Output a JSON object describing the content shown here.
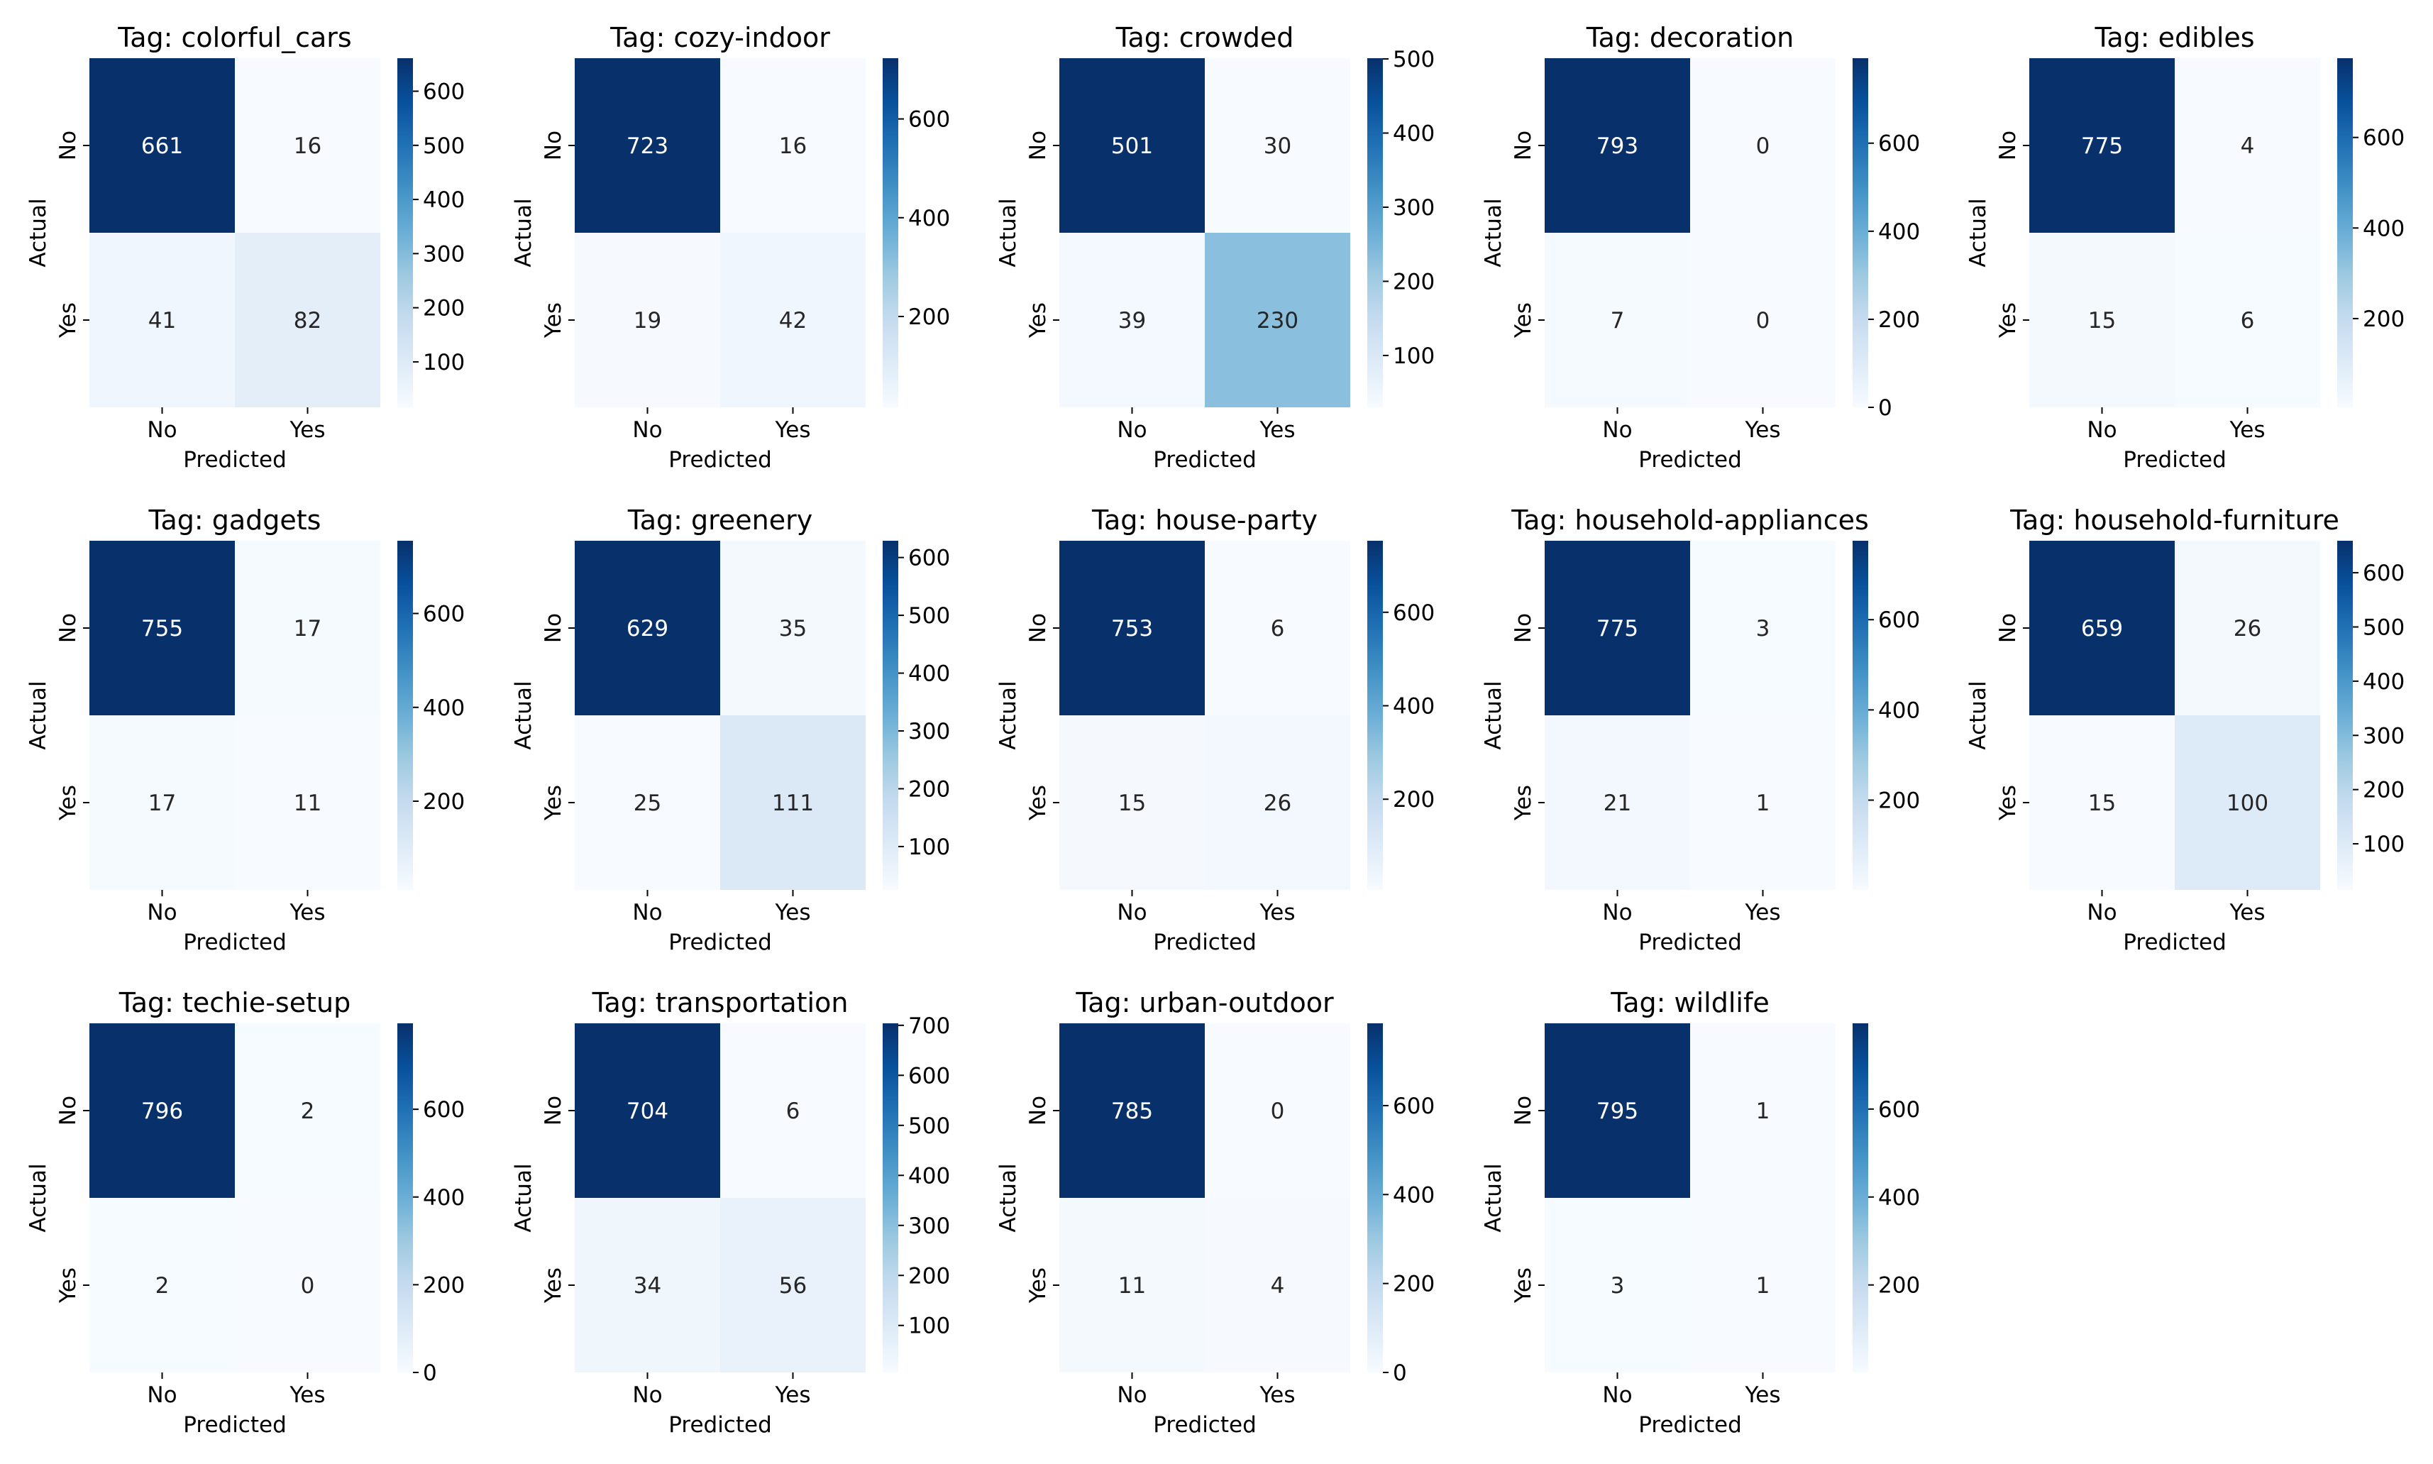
{
  "chart_data": {
    "type": "heatmap",
    "x_tick_labels": [
      "No",
      "Yes"
    ],
    "y_tick_labels": [
      "No",
      "Yes"
    ],
    "xlabel": "Predicted",
    "ylabel": "Actual",
    "colormap": "Blues",
    "panels": [
      {
        "title": "Tag: colorful_cars",
        "matrix": [
          [
            661,
            16
          ],
          [
            41,
            82
          ]
        ],
        "colorbar_ticks": [
          100,
          200,
          300,
          400,
          500,
          600
        ]
      },
      {
        "title": "Tag: cozy-indoor",
        "matrix": [
          [
            723,
            16
          ],
          [
            19,
            42
          ]
        ],
        "colorbar_ticks": [
          200,
          400,
          600
        ]
      },
      {
        "title": "Tag: crowded",
        "matrix": [
          [
            501,
            30
          ],
          [
            39,
            230
          ]
        ],
        "colorbar_ticks": [
          100,
          200,
          300,
          400,
          500
        ]
      },
      {
        "title": "Tag: decoration",
        "matrix": [
          [
            793,
            0
          ],
          [
            7,
            0
          ]
        ],
        "colorbar_ticks": [
          0,
          200,
          400,
          600
        ]
      },
      {
        "title": "Tag: edibles",
        "matrix": [
          [
            775,
            4
          ],
          [
            15,
            6
          ]
        ],
        "colorbar_ticks": [
          200,
          400,
          600
        ]
      },
      {
        "title": "Tag: gadgets",
        "matrix": [
          [
            755,
            17
          ],
          [
            17,
            11
          ]
        ],
        "colorbar_ticks": [
          200,
          400,
          600
        ]
      },
      {
        "title": "Tag: greenery",
        "matrix": [
          [
            629,
            35
          ],
          [
            25,
            111
          ]
        ],
        "colorbar_ticks": [
          100,
          200,
          300,
          400,
          500,
          600
        ]
      },
      {
        "title": "Tag: house-party",
        "matrix": [
          [
            753,
            6
          ],
          [
            15,
            26
          ]
        ],
        "colorbar_ticks": [
          200,
          400,
          600
        ]
      },
      {
        "title": "Tag: household-appliances",
        "matrix": [
          [
            775,
            3
          ],
          [
            21,
            1
          ]
        ],
        "colorbar_ticks": [
          200,
          400,
          600
        ]
      },
      {
        "title": "Tag: household-furniture",
        "matrix": [
          [
            659,
            26
          ],
          [
            15,
            100
          ]
        ],
        "colorbar_ticks": [
          100,
          200,
          300,
          400,
          500,
          600
        ]
      },
      {
        "title": "Tag: techie-setup",
        "matrix": [
          [
            796,
            2
          ],
          [
            2,
            0
          ]
        ],
        "colorbar_ticks": [
          0,
          200,
          400,
          600
        ]
      },
      {
        "title": "Tag: transportation",
        "matrix": [
          [
            704,
            6
          ],
          [
            34,
            56
          ]
        ],
        "colorbar_ticks": [
          100,
          200,
          300,
          400,
          500,
          600,
          700
        ]
      },
      {
        "title": "Tag: urban-outdoor",
        "matrix": [
          [
            785,
            0
          ],
          [
            11,
            4
          ]
        ],
        "colorbar_ticks": [
          0,
          200,
          400,
          600
        ]
      },
      {
        "title": "Tag: wildlife",
        "matrix": [
          [
            795,
            1
          ],
          [
            3,
            1
          ]
        ],
        "colorbar_ticks": [
          200,
          400,
          600
        ]
      }
    ]
  }
}
